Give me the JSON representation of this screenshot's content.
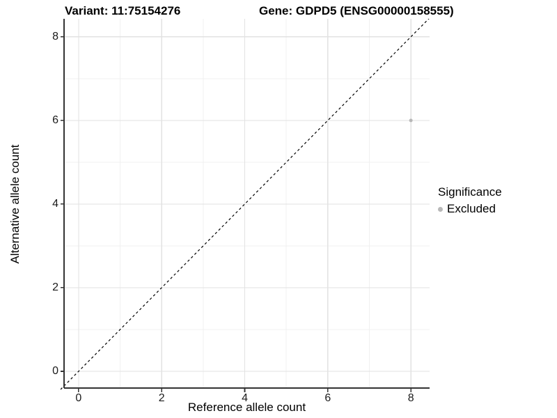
{
  "chart_data": {
    "type": "scatter",
    "title_variant": "Variant: 11:75154276",
    "title_gene": "Gene: GDPD5 (ENSG00000158555)",
    "xlabel": "Reference allele count",
    "ylabel": "Alternative allele count",
    "x_ticks": [
      0,
      2,
      4,
      6,
      8
    ],
    "y_ticks": [
      0,
      2,
      4,
      6,
      8
    ],
    "x_minor_ticks": [
      1,
      3,
      5,
      7
    ],
    "y_minor_ticks": [
      1,
      3,
      5,
      7
    ],
    "xlim": [
      -0.35,
      8.45
    ],
    "ylim": [
      -0.4,
      8.43
    ],
    "grid": true,
    "identity_line": {
      "style": "dashed",
      "slope": 1,
      "intercept": 0,
      "color": "#000000"
    },
    "points": [
      {
        "x": 8,
        "y": 6,
        "series": "Excluded",
        "color": "#b8b8b8",
        "radius": 2.5
      }
    ],
    "legend": {
      "position": "right",
      "title": "Significance",
      "items": [
        {
          "label": "Excluded",
          "color": "#b8b8b8"
        }
      ]
    },
    "colors": {
      "major_grid": "#e2e2e2",
      "minor_grid": "#f0f0f0",
      "axis_line": "#333333",
      "tick_mark": "#333333",
      "axis_text": "#1a1a1a",
      "background": "#ffffff"
    }
  }
}
